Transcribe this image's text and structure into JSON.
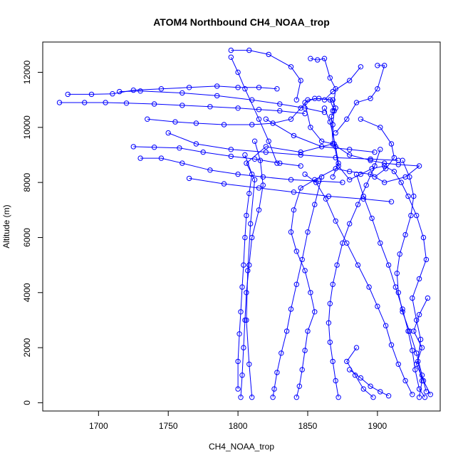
{
  "chart_data": {
    "type": "scatter",
    "title": "ATOM4 Northbound CH4_NOAA_trop",
    "xlabel": "CH4_NOAA_trop",
    "ylabel": "Altitude (m)",
    "xlim": [
      1660,
      1945
    ],
    "ylim": [
      -300,
      13100
    ],
    "xticks": [
      1700,
      1750,
      1800,
      1850,
      1900
    ],
    "yticks": [
      0,
      2000,
      4000,
      6000,
      8000,
      10000,
      12000
    ],
    "point_style": "open-circle-with-connecting-lines",
    "color": "#0000ff",
    "series": [
      {
        "points": [
          [
            1810,
            200
          ],
          [
            1808,
            1400
          ],
          [
            1806,
            3000
          ],
          [
            1807,
            4800
          ],
          [
            1809,
            6500
          ],
          [
            1812,
            8100
          ],
          [
            1806,
            8700
          ],
          [
            1820,
            9300
          ],
          [
            1845,
            9100
          ],
          [
            1868,
            9400
          ],
          [
            1867,
            10400
          ],
          [
            1870,
            10700
          ],
          [
            1868,
            11000
          ],
          [
            1855,
            11050
          ],
          [
            1848,
            10900
          ],
          [
            1852,
            10000
          ],
          [
            1860,
            9500
          ],
          [
            1868,
            9400
          ],
          [
            1880,
            9000
          ],
          [
            1895,
            8800
          ],
          [
            1905,
            8700
          ],
          [
            1915,
            8650
          ],
          [
            1930,
            8600
          ],
          [
            1920,
            8200
          ],
          [
            1905,
            8000
          ],
          [
            1895,
            8300
          ],
          [
            1880,
            8400
          ],
          [
            1870,
            8500
          ],
          [
            1855,
            8100
          ],
          [
            1845,
            7800
          ],
          [
            1840,
            7000
          ],
          [
            1838,
            6200
          ],
          [
            1842,
            5500
          ],
          [
            1848,
            4800
          ],
          [
            1852,
            4000
          ],
          [
            1855,
            3300
          ],
          [
            1850,
            2600
          ],
          [
            1848,
            1900
          ],
          [
            1846,
            1200
          ],
          [
            1844,
            600
          ],
          [
            1842,
            200
          ]
        ]
      },
      {
        "points": [
          [
            1930,
            200
          ],
          [
            1932,
            800
          ],
          [
            1929,
            1500
          ],
          [
            1931,
            2300
          ],
          [
            1928,
            3000
          ],
          [
            1925,
            3800
          ],
          [
            1930,
            4500
          ],
          [
            1935,
            5200
          ],
          [
            1933,
            6000
          ],
          [
            1928,
            6800
          ],
          [
            1922,
            7500
          ],
          [
            1917,
            8000
          ],
          [
            1912,
            8400
          ],
          [
            1905,
            8600
          ],
          [
            1896,
            8500
          ],
          [
            1888,
            8300
          ],
          [
            1880,
            8100
          ],
          [
            1872,
            8600
          ],
          [
            1869,
            9400
          ],
          [
            1868,
            10100
          ],
          [
            1869,
            10600
          ],
          [
            1866,
            11000
          ],
          [
            1858,
            11050
          ],
          [
            1850,
            11000
          ],
          [
            1845,
            10700
          ],
          [
            1838,
            10300
          ],
          [
            1825,
            10150
          ],
          [
            1810,
            10100
          ],
          [
            1790,
            10100
          ],
          [
            1770,
            10150
          ],
          [
            1755,
            10200
          ],
          [
            1735,
            10300
          ]
        ]
      },
      {
        "points": [
          [
            1672,
            10900
          ],
          [
            1690,
            10900
          ],
          [
            1705,
            10900
          ],
          [
            1720,
            10880
          ],
          [
            1740,
            10850
          ],
          [
            1760,
            10800
          ],
          [
            1780,
            10750
          ],
          [
            1800,
            10700
          ],
          [
            1815,
            10650
          ],
          [
            1830,
            10600
          ],
          [
            1848,
            10500
          ]
        ]
      },
      {
        "points": [
          [
            1678,
            11200
          ],
          [
            1695,
            11200
          ],
          [
            1710,
            11220
          ],
          [
            1725,
            11350
          ],
          [
            1745,
            11400
          ],
          [
            1765,
            11450
          ],
          [
            1785,
            11500
          ],
          [
            1800,
            11450
          ],
          [
            1815,
            11450
          ],
          [
            1828,
            11400
          ]
        ]
      },
      {
        "points": [
          [
            1715,
            11300
          ],
          [
            1730,
            11320
          ],
          [
            1760,
            11250
          ],
          [
            1785,
            11150
          ],
          [
            1810,
            11000
          ],
          [
            1830,
            10850
          ],
          [
            1848,
            10700
          ],
          [
            1862,
            10550
          ]
        ]
      },
      {
        "points": [
          [
            1795,
            12800
          ],
          [
            1808,
            12800
          ],
          [
            1822,
            12650
          ],
          [
            1838,
            12200
          ],
          [
            1845,
            11700
          ],
          [
            1842,
            11000
          ]
        ]
      },
      {
        "points": [
          [
            1795,
            12550
          ],
          [
            1800,
            12000
          ],
          [
            1805,
            11400
          ],
          [
            1815,
            10300
          ],
          [
            1822,
            9500
          ],
          [
            1828,
            8700
          ]
        ]
      },
      {
        "points": [
          [
            1852,
            12500
          ],
          [
            1857,
            12450
          ],
          [
            1862,
            12500
          ],
          [
            1866,
            11800
          ],
          [
            1870,
            11400
          ],
          [
            1868,
            10600
          ]
        ]
      },
      {
        "points": [
          [
            1900,
            12250
          ],
          [
            1905,
            12250
          ],
          [
            1900,
            11400
          ],
          [
            1895,
            11050
          ],
          [
            1885,
            10900
          ],
          [
            1878,
            10300
          ],
          [
            1870,
            9800
          ]
        ]
      },
      {
        "points": [
          [
            1888,
            12200
          ],
          [
            1880,
            11700
          ],
          [
            1868,
            11300
          ],
          [
            1862,
            11000
          ]
        ]
      },
      {
        "points": [
          [
            1725,
            9300
          ],
          [
            1740,
            9280
          ],
          [
            1758,
            9250
          ],
          [
            1775,
            9100
          ],
          [
            1795,
            8950
          ],
          [
            1812,
            8850
          ],
          [
            1830,
            8700
          ],
          [
            1845,
            8600
          ]
        ]
      },
      {
        "points": [
          [
            1730,
            8880
          ],
          [
            1745,
            8880
          ],
          [
            1760,
            8700
          ],
          [
            1780,
            8450
          ],
          [
            1800,
            8300
          ],
          [
            1818,
            8200
          ],
          [
            1838,
            8100
          ],
          [
            1858,
            8050
          ],
          [
            1875,
            8000
          ]
        ]
      },
      {
        "points": [
          [
            1765,
            8150
          ],
          [
            1790,
            7950
          ],
          [
            1815,
            7800
          ],
          [
            1840,
            7650
          ],
          [
            1865,
            7500
          ],
          [
            1890,
            7400
          ],
          [
            1910,
            7300
          ]
        ]
      },
      {
        "points": [
          [
            1848,
            8300
          ],
          [
            1856,
            8000
          ],
          [
            1863,
            7400
          ],
          [
            1870,
            6600
          ],
          [
            1878,
            5800
          ],
          [
            1886,
            5000
          ],
          [
            1894,
            4200
          ],
          [
            1900,
            3500
          ],
          [
            1906,
            2800
          ],
          [
            1910,
            2100
          ],
          [
            1915,
            1400
          ],
          [
            1920,
            800
          ],
          [
            1925,
            300
          ]
        ]
      },
      {
        "points": [
          [
            1860,
            8200
          ],
          [
            1855,
            7200
          ],
          [
            1850,
            6200
          ],
          [
            1846,
            5200
          ],
          [
            1842,
            4300
          ],
          [
            1838,
            3400
          ],
          [
            1835,
            2600
          ],
          [
            1831,
            1800
          ],
          [
            1828,
            1100
          ],
          [
            1826,
            500
          ],
          [
            1825,
            200
          ]
        ]
      },
      {
        "points": [
          [
            1885,
            8300
          ],
          [
            1890,
            7500
          ],
          [
            1896,
            6700
          ],
          [
            1902,
            5800
          ],
          [
            1908,
            5000
          ],
          [
            1913,
            4200
          ],
          [
            1918,
            3400
          ],
          [
            1922,
            2600
          ],
          [
            1925,
            1900
          ],
          [
            1927,
            1200
          ],
          [
            1930,
            500
          ],
          [
            1934,
            200
          ]
        ]
      },
      {
        "points": [
          [
            1812,
            9500
          ],
          [
            1816,
            8800
          ],
          [
            1818,
            7900
          ],
          [
            1815,
            7000
          ],
          [
            1810,
            6000
          ],
          [
            1808,
            5000
          ],
          [
            1806,
            4000
          ],
          [
            1805,
            3000
          ],
          [
            1804,
            2000
          ],
          [
            1803,
            1000
          ],
          [
            1802,
            200
          ]
        ]
      },
      {
        "points": [
          [
            1805,
            9000
          ],
          [
            1810,
            8300
          ],
          [
            1808,
            7600
          ],
          [
            1806,
            6800
          ],
          [
            1805,
            6000
          ],
          [
            1804,
            5000
          ],
          [
            1803,
            4200
          ],
          [
            1802,
            3300
          ],
          [
            1801,
            2500
          ],
          [
            1800,
            1500
          ],
          [
            1800,
            500
          ]
        ]
      },
      {
        "points": [
          [
            1902,
            9200
          ],
          [
            1898,
            8600
          ],
          [
            1892,
            7900
          ],
          [
            1886,
            7200
          ],
          [
            1880,
            6500
          ],
          [
            1875,
            5800
          ],
          [
            1871,
            5000
          ],
          [
            1868,
            4300
          ],
          [
            1866,
            3600
          ],
          [
            1865,
            2900
          ],
          [
            1866,
            2200
          ],
          [
            1868,
            1500
          ],
          [
            1870,
            800
          ],
          [
            1872,
            200
          ]
        ]
      },
      {
        "points": [
          [
            1918,
            8800
          ],
          [
            1923,
            8200
          ],
          [
            1926,
            7500
          ],
          [
            1924,
            6800
          ],
          [
            1920,
            6100
          ],
          [
            1916,
            5400
          ],
          [
            1914,
            4700
          ],
          [
            1915,
            4000
          ],
          [
            1918,
            3300
          ],
          [
            1923,
            2600
          ],
          [
            1928,
            1800
          ],
          [
            1932,
            1000
          ],
          [
            1935,
            400
          ]
        ]
      },
      {
        "points": [
          [
            1880,
            1200
          ],
          [
            1888,
            900
          ],
          [
            1895,
            600
          ],
          [
            1902,
            400
          ],
          [
            1908,
            250
          ]
        ]
      },
      {
        "points": [
          [
            1885,
            2000
          ],
          [
            1878,
            1500
          ],
          [
            1884,
            1000
          ],
          [
            1890,
            500
          ],
          [
            1897,
            200
          ]
        ]
      },
      {
        "points": [
          [
            1936,
            3800
          ],
          [
            1930,
            3200
          ],
          [
            1926,
            2600
          ],
          [
            1932,
            2000
          ],
          [
            1928,
            1400
          ],
          [
            1933,
            800
          ],
          [
            1938,
            300
          ]
        ]
      },
      {
        "points": [
          [
            1888,
            10300
          ],
          [
            1902,
            10000
          ],
          [
            1910,
            9400
          ],
          [
            1912,
            8900
          ],
          [
            1906,
            8500
          ],
          [
            1898,
            8200
          ]
        ]
      },
      {
        "points": [
          [
            1862,
            10700
          ],
          [
            1866,
            10200
          ],
          [
            1870,
            9300
          ],
          [
            1872,
            8700
          ],
          [
            1868,
            8200
          ]
        ]
      },
      {
        "points": [
          [
            1820,
            10300
          ],
          [
            1840,
            9700
          ],
          [
            1860,
            9300
          ],
          [
            1880,
            9200
          ],
          [
            1898,
            9100
          ]
        ]
      },
      {
        "points": [
          [
            1750,
            9800
          ],
          [
            1770,
            9400
          ],
          [
            1795,
            9200
          ],
          [
            1820,
            9100
          ],
          [
            1845,
            9000
          ],
          [
            1870,
            8900
          ],
          [
            1895,
            8850
          ],
          [
            1915,
            8800
          ]
        ]
      }
    ]
  }
}
